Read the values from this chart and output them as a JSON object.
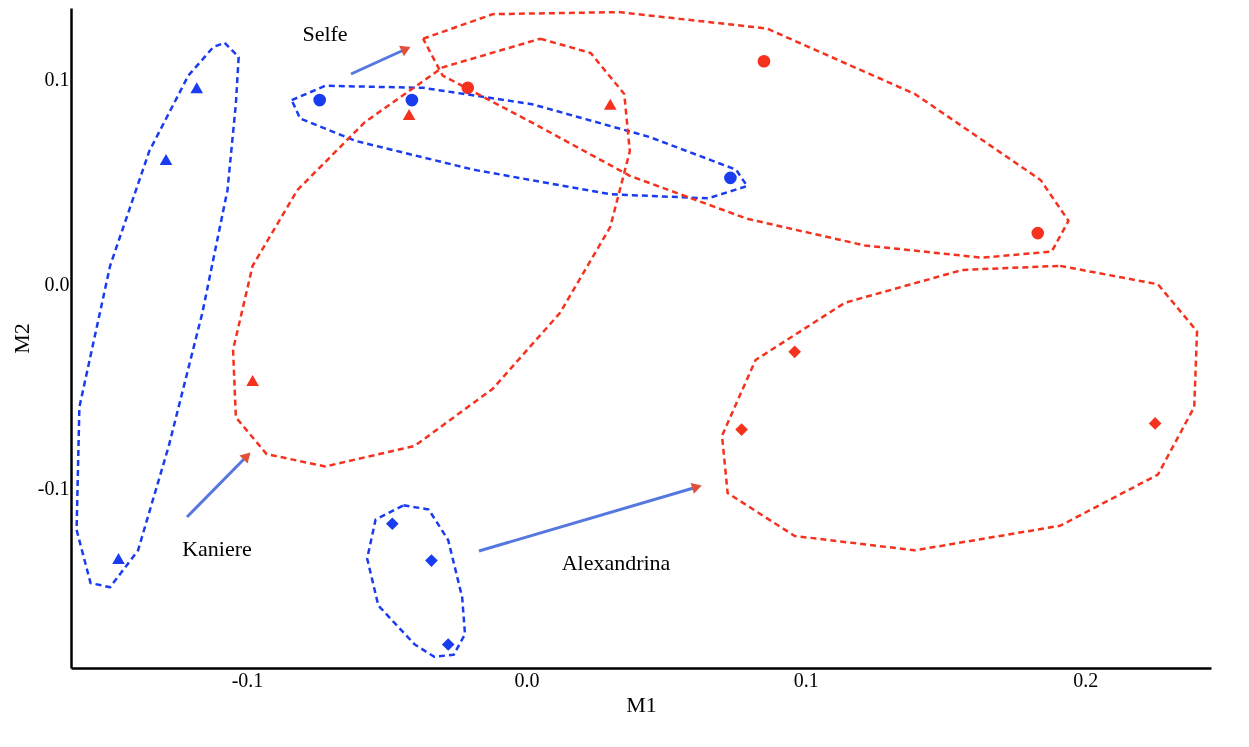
{
  "chart_data": {
    "type": "scatter",
    "xlabel": "M1",
    "ylabel": "M2",
    "xlim": [
      -0.163,
      0.245
    ],
    "ylim": [
      -0.1875,
      0.135
    ],
    "xticks": [
      -0.1,
      {
        "value": 0,
        "label": "0.0"
      },
      0.1,
      0.2
    ],
    "yticks": [
      -0.1,
      {
        "value": 0,
        "label": "0.0"
      },
      0.1
    ],
    "grid": false,
    "annotations": [
      "Selfe",
      "Kaniere",
      "Alexandrina"
    ],
    "series": [
      {
        "marker": "triangle",
        "color": "#1a3cf0",
        "x": [
          -0.118,
          -0.129,
          -0.146
        ],
        "values": [
          0.096,
          0.061,
          -0.134
        ]
      },
      {
        "marker": "circle",
        "color": "#1a3cf0",
        "x": [
          -0.074,
          -0.041,
          0.073
        ],
        "values": [
          0.09,
          0.09,
          0.052
        ]
      },
      {
        "marker": "diamond",
        "color": "#1a3cf0",
        "x": [
          -0.048,
          -0.034,
          -0.028
        ],
        "values": [
          -0.117,
          -0.135,
          -0.176
        ]
      },
      {
        "marker": "triangle",
        "color": "#f5321e",
        "x": [
          -0.042,
          0.03,
          -0.098
        ],
        "values": [
          0.083,
          0.088,
          -0.047
        ]
      },
      {
        "marker": "circle",
        "color": "#f5321e",
        "x": [
          -0.021,
          0.085,
          0.183
        ],
        "values": [
          0.096,
          0.109,
          0.025
        ]
      },
      {
        "marker": "diamond",
        "color": "#f5321e",
        "x": [
          0.096,
          0.077,
          0.225
        ],
        "values": [
          -0.033,
          -0.071,
          -0.068
        ]
      }
    ]
  }
}
